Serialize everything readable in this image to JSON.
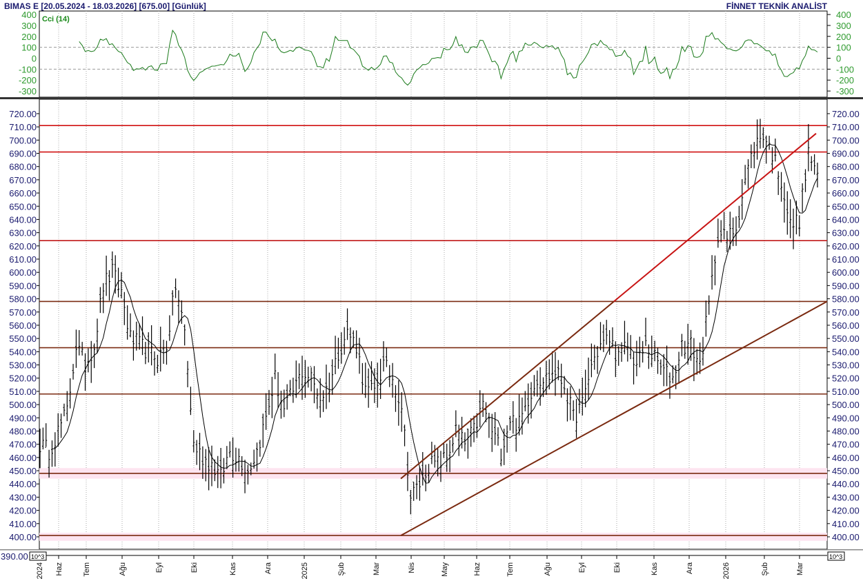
{
  "header": {
    "title": "BIMAS E  [20.05.2024 - 18.03.2026]  [675.00]  [Günlük]",
    "brand": "FİNNET TEKNİK ANALİST"
  },
  "chart_data": [
    {
      "type": "line",
      "title": "Cci (14)",
      "ylim": [
        -350,
        400
      ],
      "yticks": [
        "400",
        "300",
        "200",
        "100",
        "0",
        "-100",
        "-200",
        "-300"
      ],
      "ytick_values": [
        400,
        300,
        200,
        100,
        0,
        -100,
        -200,
        -300
      ],
      "dashed_levels": [
        100,
        -100
      ],
      "color": "#1a7a1a"
    },
    {
      "type": "bar",
      "subtype": "ohlc",
      "series_name": "BIMAS E",
      "last_close": 675.0,
      "ylim": [
        390,
        730
      ],
      "yticks": [
        "720.00",
        "710.00",
        "700.00",
        "690.00",
        "680.00",
        "670.00",
        "660.00",
        "650.00",
        "640.00",
        "630.00",
        "620.00",
        "610.00",
        "600.00",
        "590.00",
        "580.00",
        "570.00",
        "560.00",
        "550.00",
        "540.00",
        "530.00",
        "520.00",
        "510.00",
        "500.00",
        "490.00",
        "480.00",
        "470.00",
        "460.00",
        "450.00",
        "440.00",
        "430.00",
        "420.00",
        "410.00",
        "400.00"
      ],
      "ytick_values": [
        720,
        710,
        700,
        690,
        680,
        670,
        660,
        650,
        640,
        630,
        620,
        610,
        600,
        590,
        580,
        570,
        560,
        550,
        540,
        530,
        520,
        510,
        500,
        490,
        480,
        470,
        460,
        450,
        440,
        430,
        420,
        410,
        400
      ],
      "scale_label": "10^3",
      "bottom_partial_label": "390.00",
      "x_months": [
        "2024",
        "Haz",
        "Tem",
        "Ağu",
        "Eyl",
        "Eki",
        "Kas",
        "Ara",
        "2025",
        "Şub",
        "Mar",
        "Nis",
        "May",
        "Haz",
        "Tem",
        "Ağu",
        "Eyl",
        "Eki",
        "Kas",
        "Ara",
        "2026",
        "Şub",
        "Mar"
      ],
      "approx_close": [
        470,
        465,
        480,
        495,
        545,
        530,
        545,
        590,
        600,
        585,
        550,
        545,
        540,
        535,
        545,
        590,
        555,
        470,
        460,
        455,
        445,
        465,
        460,
        450,
        465,
        490,
        520,
        495,
        510,
        525,
        520,
        505,
        515,
        540,
        555,
        545,
        510,
        510,
        530,
        520,
        500,
        430,
        440,
        455,
        455,
        460,
        480,
        470,
        480,
        500,
        480,
        465,
        490,
        485,
        505,
        520,
        520,
        525,
        515,
        490,
        500,
        530,
        545,
        550,
        535,
        545,
        530,
        545,
        535,
        525,
        520,
        545,
        545,
        530,
        575,
        630,
        625,
        635,
        670,
        695,
        705,
        690,
        670,
        635,
        640,
        690,
        675
      ],
      "moving_average": "overlay, black thin line",
      "horizontal_levels": [
        {
          "value": 711,
          "color": "#d01010"
        },
        {
          "value": 691,
          "color": "#d01010"
        },
        {
          "value": 624,
          "color": "#c01818"
        },
        {
          "value": 578,
          "color": "#7a2a10"
        },
        {
          "value": 543,
          "color": "#7a2a10"
        },
        {
          "value": 508,
          "color": "#7a2a10"
        },
        {
          "value": 448,
          "color": "#7a2a10"
        },
        {
          "value": 401,
          "color": "#7a2a10"
        }
      ],
      "trendlines": [
        {
          "from": [
            "Mar 2025",
            401
          ],
          "to": [
            "Mar 2026",
            578
          ],
          "color": "#7a2a10"
        },
        {
          "from": [
            "Mar 2025",
            444
          ],
          "to": [
            "Mar 2026",
            705
          ],
          "color": "#c81414"
        }
      ]
    }
  ]
}
